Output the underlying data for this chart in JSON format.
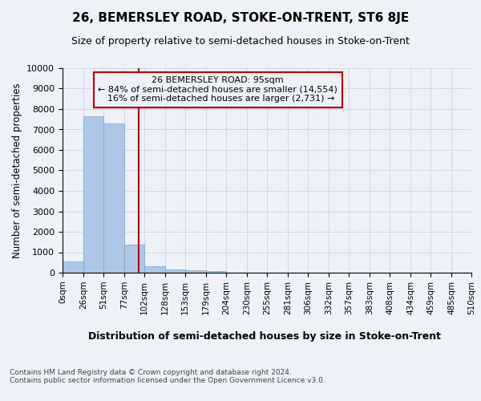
{
  "title": "26, BEMERSLEY ROAD, STOKE-ON-TRENT, ST6 8JE",
  "subtitle": "Size of property relative to semi-detached houses in Stoke-on-Trent",
  "xlabel_dist": "Distribution of semi-detached houses by size in Stoke-on-Trent",
  "ylabel": "Number of semi-detached properties",
  "property_size": 95,
  "property_label": "26 BEMERSLEY ROAD: 95sqm",
  "pct_smaller": 84,
  "pct_larger": 16,
  "n_smaller": 14554,
  "n_larger": 2731,
  "bin_edges": [
    0,
    26,
    51,
    77,
    102,
    128,
    153,
    179,
    204,
    230,
    255,
    281,
    306,
    332,
    357,
    383,
    408,
    434,
    459,
    485,
    510
  ],
  "bar_heights": [
    530,
    7650,
    7280,
    1360,
    310,
    160,
    115,
    90,
    0,
    0,
    0,
    0,
    0,
    0,
    0,
    0,
    0,
    0,
    0,
    0
  ],
  "bar_color": "#aec6e8",
  "bar_edge_color": "#7aadd4",
  "grid_color": "#c8d4e8",
  "vline_color": "#cc0000",
  "annotation_box_color": "#cc0000",
  "background_color": "#eef2f8",
  "tick_labels": [
    "0sqm",
    "26sqm",
    "51sqm",
    "77sqm",
    "102sqm",
    "128sqm",
    "153sqm",
    "179sqm",
    "204sqm",
    "230sqm",
    "255sqm",
    "281sqm",
    "306sqm",
    "332sqm",
    "357sqm",
    "383sqm",
    "408sqm",
    "434sqm",
    "459sqm",
    "485sqm",
    "510sqm"
  ],
  "footer": "Contains HM Land Registry data © Crown copyright and database right 2024.\nContains public sector information licensed under the Open Government Licence v3.0.",
  "ylim": [
    0,
    10000
  ],
  "yticks": [
    0,
    1000,
    2000,
    3000,
    4000,
    5000,
    6000,
    7000,
    8000,
    9000,
    10000
  ]
}
